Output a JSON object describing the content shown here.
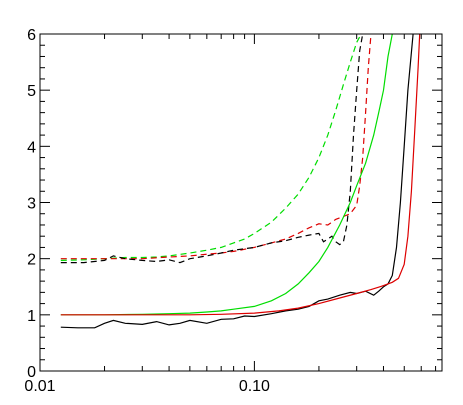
{
  "chart_data": {
    "type": "line",
    "title": "",
    "xlabel": "",
    "ylabel": "",
    "xscale": "log",
    "xlim": [
      0.01,
      0.75
    ],
    "ylim": [
      0,
      6
    ],
    "grid": false,
    "legend": "none",
    "x_ticks": [
      {
        "value": 0.01,
        "label": "0.01"
      },
      {
        "value": 0.1,
        "label": "0.10"
      }
    ],
    "y_ticks": [
      {
        "value": 0,
        "label": "0"
      },
      {
        "value": 1,
        "label": "1"
      },
      {
        "value": 2,
        "label": "2"
      },
      {
        "value": 3,
        "label": "3"
      },
      {
        "value": 4,
        "label": "4"
      },
      {
        "value": 5,
        "label": "5"
      },
      {
        "value": 6,
        "label": "6"
      }
    ],
    "x_minor_ticks": [
      0.02,
      0.03,
      0.04,
      0.05,
      0.06,
      0.07,
      0.08,
      0.09,
      0.2,
      0.3,
      0.4,
      0.5,
      0.6,
      0.7
    ],
    "y_minor_step": 0.2,
    "series": [
      {
        "color": "#00dd00",
        "dash": "dashed",
        "points": [
          [
            0.0125,
            1.97
          ],
          [
            0.016,
            1.98
          ],
          [
            0.02,
            2.0
          ],
          [
            0.025,
            2.02
          ],
          [
            0.03,
            2.02
          ],
          [
            0.035,
            2.03
          ],
          [
            0.04,
            2.05
          ],
          [
            0.05,
            2.1
          ],
          [
            0.06,
            2.15
          ],
          [
            0.07,
            2.2
          ],
          [
            0.08,
            2.28
          ],
          [
            0.09,
            2.35
          ],
          [
            0.1,
            2.45
          ],
          [
            0.12,
            2.65
          ],
          [
            0.14,
            2.9
          ],
          [
            0.16,
            3.15
          ],
          [
            0.18,
            3.45
          ],
          [
            0.2,
            3.8
          ],
          [
            0.22,
            4.2
          ],
          [
            0.24,
            4.65
          ],
          [
            0.26,
            5.1
          ],
          [
            0.28,
            5.5
          ],
          [
            0.3,
            5.85
          ],
          [
            0.315,
            6.0
          ]
        ]
      },
      {
        "color": "#dd0000",
        "dash": "dashed",
        "points": [
          [
            0.0125,
            2.0
          ],
          [
            0.016,
            2.0
          ],
          [
            0.02,
            2.0
          ],
          [
            0.025,
            2.0
          ],
          [
            0.03,
            2.0
          ],
          [
            0.04,
            2.03
          ],
          [
            0.05,
            2.05
          ],
          [
            0.06,
            2.08
          ],
          [
            0.07,
            2.1
          ],
          [
            0.08,
            2.13
          ],
          [
            0.1,
            2.2
          ],
          [
            0.12,
            2.28
          ],
          [
            0.14,
            2.35
          ],
          [
            0.16,
            2.45
          ],
          [
            0.18,
            2.55
          ],
          [
            0.2,
            2.62
          ],
          [
            0.22,
            2.6
          ],
          [
            0.24,
            2.7
          ],
          [
            0.26,
            2.75
          ],
          [
            0.28,
            2.8
          ],
          [
            0.3,
            2.95
          ],
          [
            0.31,
            3.3
          ],
          [
            0.32,
            3.8
          ],
          [
            0.33,
            4.6
          ],
          [
            0.34,
            5.4
          ],
          [
            0.35,
            6.0
          ]
        ]
      },
      {
        "color": "#000000",
        "dash": "dashed",
        "points": [
          [
            0.0125,
            1.93
          ],
          [
            0.016,
            1.93
          ],
          [
            0.02,
            1.97
          ],
          [
            0.022,
            2.05
          ],
          [
            0.025,
            2.0
          ],
          [
            0.03,
            1.97
          ],
          [
            0.035,
            1.95
          ],
          [
            0.04,
            1.98
          ],
          [
            0.045,
            1.93
          ],
          [
            0.05,
            2.0
          ],
          [
            0.06,
            2.05
          ],
          [
            0.07,
            2.1
          ],
          [
            0.08,
            2.15
          ],
          [
            0.1,
            2.2
          ],
          [
            0.12,
            2.28
          ],
          [
            0.14,
            2.32
          ],
          [
            0.16,
            2.38
          ],
          [
            0.18,
            2.42
          ],
          [
            0.2,
            2.45
          ],
          [
            0.21,
            2.3
          ],
          [
            0.22,
            2.35
          ],
          [
            0.23,
            2.4
          ],
          [
            0.24,
            2.3
          ],
          [
            0.25,
            2.25
          ],
          [
            0.26,
            2.3
          ],
          [
            0.27,
            2.6
          ],
          [
            0.28,
            3.2
          ],
          [
            0.29,
            4.2
          ],
          [
            0.3,
            5.0
          ],
          [
            0.31,
            5.7
          ],
          [
            0.32,
            6.0
          ]
        ]
      },
      {
        "color": "#00dd00",
        "dash": "solid",
        "points": [
          [
            0.0125,
            1.0
          ],
          [
            0.02,
            1.0
          ],
          [
            0.03,
            1.01
          ],
          [
            0.04,
            1.02
          ],
          [
            0.05,
            1.03
          ],
          [
            0.06,
            1.05
          ],
          [
            0.07,
            1.07
          ],
          [
            0.08,
            1.1
          ],
          [
            0.1,
            1.15
          ],
          [
            0.12,
            1.25
          ],
          [
            0.14,
            1.38
          ],
          [
            0.16,
            1.55
          ],
          [
            0.18,
            1.75
          ],
          [
            0.2,
            1.95
          ],
          [
            0.22,
            2.2
          ],
          [
            0.25,
            2.6
          ],
          [
            0.28,
            3.0
          ],
          [
            0.3,
            3.3
          ],
          [
            0.33,
            3.7
          ],
          [
            0.36,
            4.2
          ],
          [
            0.38,
            4.6
          ],
          [
            0.4,
            5.0
          ],
          [
            0.42,
            5.6
          ],
          [
            0.44,
            6.0
          ]
        ]
      },
      {
        "color": "#000000",
        "dash": "solid",
        "points": [
          [
            0.0125,
            0.78
          ],
          [
            0.015,
            0.77
          ],
          [
            0.018,
            0.77
          ],
          [
            0.02,
            0.85
          ],
          [
            0.022,
            0.9
          ],
          [
            0.025,
            0.85
          ],
          [
            0.03,
            0.83
          ],
          [
            0.035,
            0.88
          ],
          [
            0.04,
            0.82
          ],
          [
            0.045,
            0.85
          ],
          [
            0.05,
            0.9
          ],
          [
            0.06,
            0.85
          ],
          [
            0.07,
            0.92
          ],
          [
            0.08,
            0.93
          ],
          [
            0.09,
            0.98
          ],
          [
            0.1,
            0.97
          ],
          [
            0.12,
            1.02
          ],
          [
            0.14,
            1.07
          ],
          [
            0.16,
            1.1
          ],
          [
            0.18,
            1.15
          ],
          [
            0.2,
            1.25
          ],
          [
            0.22,
            1.28
          ],
          [
            0.25,
            1.35
          ],
          [
            0.28,
            1.4
          ],
          [
            0.3,
            1.38
          ],
          [
            0.33,
            1.42
          ],
          [
            0.36,
            1.35
          ],
          [
            0.38,
            1.42
          ],
          [
            0.4,
            1.5
          ],
          [
            0.42,
            1.55
          ],
          [
            0.44,
            1.7
          ],
          [
            0.46,
            2.2
          ],
          [
            0.48,
            3.0
          ],
          [
            0.5,
            4.0
          ],
          [
            0.52,
            5.0
          ],
          [
            0.55,
            6.0
          ]
        ]
      },
      {
        "color": "#dd0000",
        "dash": "solid",
        "points": [
          [
            0.0125,
            1.0
          ],
          [
            0.02,
            1.0
          ],
          [
            0.03,
            1.0
          ],
          [
            0.05,
            1.0
          ],
          [
            0.07,
            1.01
          ],
          [
            0.1,
            1.03
          ],
          [
            0.13,
            1.07
          ],
          [
            0.16,
            1.12
          ],
          [
            0.2,
            1.2
          ],
          [
            0.25,
            1.3
          ],
          [
            0.3,
            1.38
          ],
          [
            0.35,
            1.45
          ],
          [
            0.4,
            1.52
          ],
          [
            0.44,
            1.58
          ],
          [
            0.47,
            1.65
          ],
          [
            0.5,
            1.9
          ],
          [
            0.52,
            2.4
          ],
          [
            0.54,
            3.2
          ],
          [
            0.56,
            4.3
          ],
          [
            0.58,
            5.4
          ],
          [
            0.59,
            6.0
          ]
        ]
      }
    ]
  }
}
